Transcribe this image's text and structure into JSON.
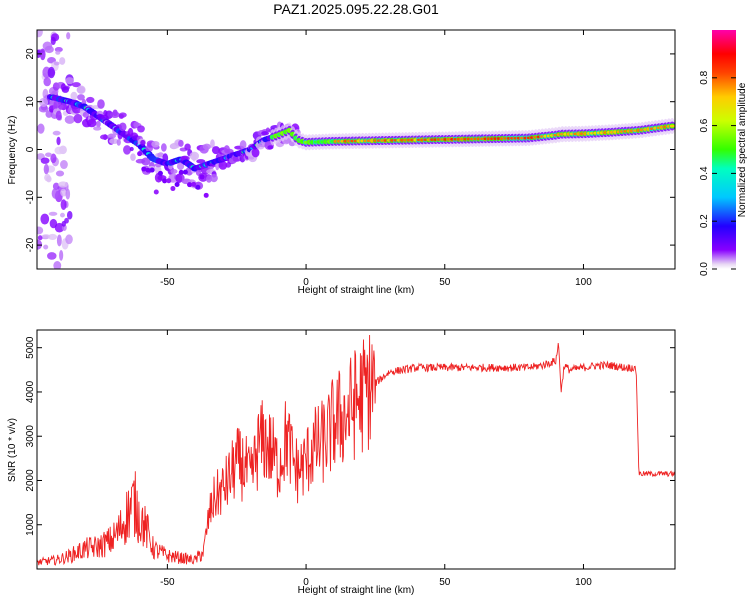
{
  "title": "PAZ1.2025.095.22.28.G01",
  "chart_data": [
    {
      "type": "heatmap",
      "xlabel": "Height of straight line (km)",
      "ylabel": "Frequency (Hz)",
      "xlim": [
        -97,
        133
      ],
      "ylim": [
        -25,
        25
      ],
      "xticks": [
        -50,
        0,
        50,
        100
      ],
      "yticks": [
        -20,
        -10,
        0,
        10,
        20
      ],
      "colorbar": {
        "label": "Normalized spectral amplitude",
        "range": [
          0,
          1
        ],
        "ticks": [
          "0.0",
          "0.2",
          "0.4",
          "0.6",
          "0.8"
        ]
      },
      "ridge": {
        "x": [
          -92,
          -85,
          -80,
          -75,
          -70,
          -65,
          -60,
          -55,
          -50,
          -45,
          -40,
          -35,
          -30,
          -25,
          -20,
          -15,
          -10,
          -6,
          -3,
          0,
          10,
          20,
          40,
          60,
          80,
          90,
          92,
          100,
          110,
          120,
          133
        ],
        "frequency": [
          11,
          10,
          9,
          7,
          5,
          3,
          1,
          -2,
          -3,
          -2,
          -4,
          -3,
          -2,
          -1,
          0,
          2,
          3,
          4,
          2,
          1.5,
          1.7,
          1.8,
          2,
          2.2,
          2.4,
          3,
          3.2,
          3.3,
          3.6,
          4,
          5
        ]
      }
    },
    {
      "type": "line",
      "xlabel": "Height of straight line (km)",
      "ylabel": "SNR (10 * v/v)",
      "xlim": [
        -97,
        133
      ],
      "ylim": [
        0,
        5400
      ],
      "xticks": [
        -50,
        0,
        50,
        100
      ],
      "yticks": [
        1000,
        2000,
        3000,
        4000,
        5000
      ],
      "color": "#ee2222",
      "series": [
        {
          "x": [
            -97,
            -90,
            -85,
            -80,
            -75,
            -70,
            -67,
            -64,
            -62,
            -60,
            -57,
            -55,
            -50,
            -45,
            -40,
            -37,
            -35,
            -33,
            -30,
            -28,
            -25,
            -22,
            -20,
            -17,
            -15,
            -12,
            -10,
            -7,
            -5,
            -3,
            0,
            2,
            5,
            8,
            10,
            12,
            15,
            17,
            20,
            23,
            25,
            28,
            30,
            35,
            40,
            50,
            60,
            70,
            80,
            85,
            90,
            91,
            92,
            93,
            95,
            100,
            105,
            110,
            115,
            118,
            119,
            120,
            125,
            133
          ],
          "y": [
            150,
            200,
            300,
            450,
            500,
            650,
            900,
            1300,
            1500,
            1200,
            800,
            450,
            300,
            250,
            200,
            400,
            1200,
            1600,
            1800,
            2000,
            2400,
            2300,
            2000,
            2800,
            2900,
            2600,
            2300,
            3000,
            2500,
            2200,
            2400,
            2700,
            2800,
            3000,
            3300,
            3400,
            3500,
            3700,
            3900,
            4100,
            4200,
            4350,
            4450,
            4500,
            4550,
            4550,
            4550,
            4550,
            4550,
            4600,
            4700,
            5100,
            4000,
            4600,
            4500,
            4550,
            4600,
            4600,
            4550,
            4550,
            4500,
            2150,
            2150,
            2150
          ]
        }
      ]
    }
  ]
}
